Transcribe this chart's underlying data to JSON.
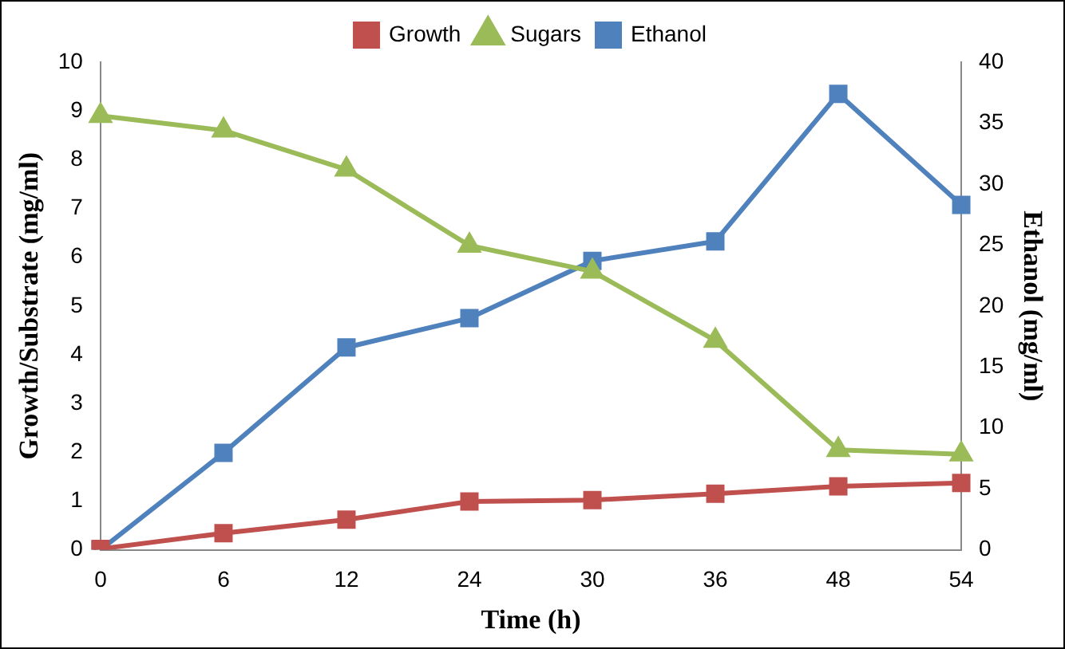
{
  "chart_data": {
    "type": "line",
    "xlabel": "Time (h)",
    "ylabel": "Growth/Substrate (mg/ml)",
    "y2label": "Ethanol (mg/ml)",
    "categories": [
      "0",
      "6",
      "12",
      "24",
      "30",
      "36",
      "48",
      "54"
    ],
    "series": [
      {
        "name": "Growth",
        "color": "#c0504d",
        "marker": "square",
        "values": [
          0.02,
          0.34,
          0.62,
          0.99,
          1.02,
          1.15,
          1.3,
          1.37
        ]
      },
      {
        "name": "Sugars",
        "color": "#9bbb59",
        "marker": "triangle",
        "values": [
          8.9,
          8.6,
          7.8,
          6.24,
          5.71,
          4.29,
          2.05,
          1.96
        ]
      },
      {
        "name": "Ethanol",
        "color": "#4f81bd",
        "marker": "square",
        "axis": "y2",
        "values": [
          0,
          7.95,
          16.6,
          19.0,
          23.7,
          25.3,
          37.4,
          28.3
        ]
      }
    ],
    "ylim": [
      0,
      10
    ],
    "yticks": [
      0,
      1,
      2,
      3,
      4,
      5,
      6,
      7,
      8,
      9,
      10
    ],
    "y2lim": [
      0,
      40
    ],
    "y2ticks": [
      0,
      5,
      10,
      15,
      20,
      25,
      30,
      35,
      40
    ],
    "grid": false,
    "legend": "top"
  }
}
